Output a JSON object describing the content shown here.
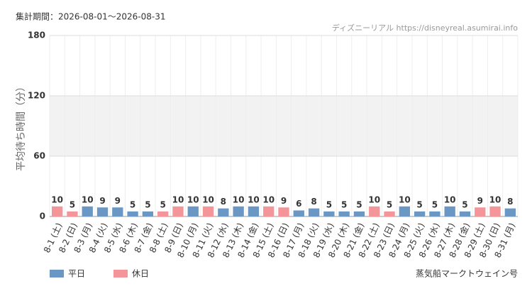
{
  "chart_data": {
    "type": "bar",
    "period": "集計期間：2026-08-01～2026-08-31",
    "source": "ディズニーリアル https://disneyreal.asumirai.info",
    "y_label": "平均待ち時間（分）",
    "caption": "蒸気船マークトウェイン号",
    "categories": [
      "8-1 (土)",
      "8-2 (日)",
      "8-3 (月)",
      "8-4 (火)",
      "8-5 (水)",
      "8-6 (木)",
      "8-7 (金)",
      "8-8 (土)",
      "8-9 (日)",
      "8-10 (月)",
      "8-11 (火)",
      "8-12 (水)",
      "8-13 (木)",
      "8-14 (金)",
      "8-15 (土)",
      "8-16 (日)",
      "8-17 (月)",
      "8-18 (火)",
      "8-19 (水)",
      "8-20 (木)",
      "8-21 (金)",
      "8-22 (土)",
      "8-23 (日)",
      "8-24 (月)",
      "8-25 (火)",
      "8-26 (水)",
      "8-27 (木)",
      "8-28 (金)",
      "8-29 (土)",
      "8-30 (日)",
      "8-31 (月)"
    ],
    "series": [
      {
        "name": "平日",
        "color": "#6a97c4",
        "values": [
          null,
          null,
          10,
          9,
          9,
          5,
          5,
          null,
          null,
          10,
          null,
          8,
          10,
          10,
          null,
          null,
          6,
          8,
          5,
          5,
          5,
          null,
          null,
          10,
          5,
          5,
          10,
          5,
          null,
          null,
          8
        ]
      },
      {
        "name": "休日",
        "color": "#f4959a",
        "values": [
          10,
          5,
          null,
          null,
          null,
          null,
          null,
          5,
          10,
          null,
          10,
          null,
          null,
          null,
          10,
          9,
          null,
          null,
          null,
          null,
          null,
          10,
          5,
          null,
          null,
          null,
          null,
          null,
          9,
          10,
          null
        ]
      }
    ],
    "ylim": [
      0,
      180
    ],
    "yticks": [
      0,
      60,
      120,
      180
    ],
    "grid": true
  }
}
